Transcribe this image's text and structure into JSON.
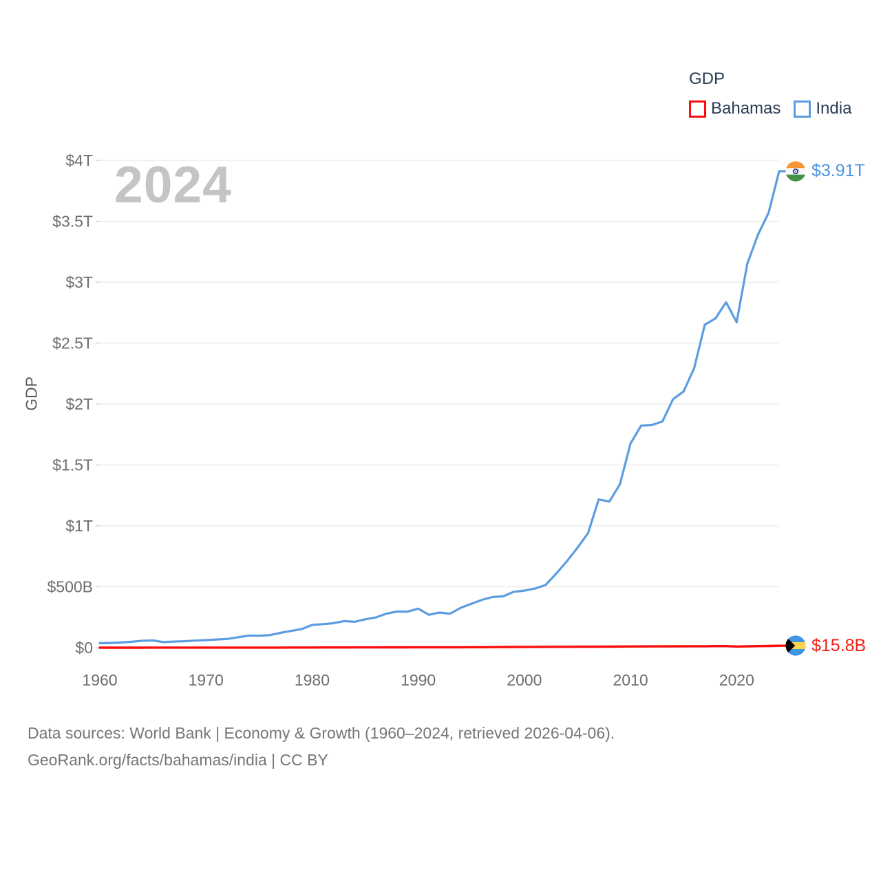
{
  "legend": {
    "title": "GDP",
    "items": [
      {
        "label": "Bahamas",
        "color": "#fb0d0d"
      },
      {
        "label": "India",
        "color": "#5c9ce0"
      }
    ]
  },
  "watermark": "2024",
  "y_axis_title": "GDP",
  "footer": {
    "line1": "Data sources: World Bank | Economy & Growth (1960–2024, retrieved 2026-04-06).",
    "line2": "GeoRank.org/facts/bahamas/india | CC BY"
  },
  "end_labels": {
    "india": {
      "value": "$3.91T",
      "flag": "india-flag-icon",
      "color": "#4d94e0"
    },
    "bahamas": {
      "value": "$15.8B",
      "flag": "bahamas-flag-icon",
      "color": "#f42015"
    }
  },
  "chart_data": {
    "type": "line",
    "title": "GDP",
    "xlabel": "",
    "ylabel": "GDP",
    "xlim": [
      1960,
      2024
    ],
    "ylim_billion_usd": [
      0,
      4000
    ],
    "grid": "horizontal",
    "legend_position": "top-right",
    "x_ticks": [
      1960,
      1970,
      1980,
      1990,
      2000,
      2010,
      2020
    ],
    "y_ticks": [
      {
        "label": "$0",
        "value_b": 0
      },
      {
        "label": "$500B",
        "value_b": 500
      },
      {
        "label": "$1T",
        "value_b": 1000
      },
      {
        "label": "$1.5T",
        "value_b": 1500
      },
      {
        "label": "$2T",
        "value_b": 2000
      },
      {
        "label": "$2.5T",
        "value_b": 2500
      },
      {
        "label": "$3T",
        "value_b": 3000
      },
      {
        "label": "$3.5T",
        "value_b": 3500
      },
      {
        "label": "$4T",
        "value_b": 4000
      }
    ],
    "years": [
      1960,
      1961,
      1962,
      1963,
      1964,
      1965,
      1966,
      1967,
      1968,
      1969,
      1970,
      1971,
      1972,
      1973,
      1974,
      1975,
      1976,
      1977,
      1978,
      1979,
      1980,
      1981,
      1982,
      1983,
      1984,
      1985,
      1986,
      1987,
      1988,
      1989,
      1990,
      1991,
      1992,
      1993,
      1994,
      1995,
      1996,
      1997,
      1998,
      1999,
      2000,
      2001,
      2002,
      2003,
      2004,
      2005,
      2006,
      2007,
      2008,
      2009,
      2010,
      2011,
      2012,
      2013,
      2014,
      2015,
      2016,
      2017,
      2018,
      2019,
      2020,
      2021,
      2022,
      2023,
      2024
    ],
    "series": [
      {
        "name": "Bahamas",
        "color": "#fb0d0d",
        "stroke_width": 3.4,
        "end_label": "$15.8B",
        "values_billion_usd": [
          0.17,
          0.19,
          0.21,
          0.24,
          0.28,
          0.32,
          0.36,
          0.41,
          0.45,
          0.51,
          0.57,
          0.6,
          0.62,
          0.64,
          0.63,
          0.65,
          0.68,
          0.73,
          0.85,
          1.09,
          1.34,
          1.43,
          1.58,
          1.73,
          2.04,
          2.32,
          2.47,
          2.71,
          2.95,
          3.06,
          3.17,
          3.11,
          3.11,
          3.19,
          3.42,
          3.84,
          4.04,
          4.31,
          4.82,
          5.6,
          6.33,
          6.52,
          6.96,
          7.09,
          7.36,
          7.71,
          8.06,
          8.64,
          8.84,
          9.33,
          10.1,
          10.07,
          10.72,
          10.73,
          11.26,
          11.79,
          11.93,
          12.12,
          12.8,
          13.16,
          9.7,
          11.21,
          12.9,
          14.34,
          15.8
        ]
      },
      {
        "name": "India",
        "color": "#5c9ce0",
        "stroke_width": 3.2,
        "end_label": "$3.91T",
        "values_billion_usd": [
          37.0,
          39.2,
          42.2,
          48.4,
          56.5,
          59.6,
          45.9,
          50.1,
          53.1,
          58.4,
          62.4,
          67.4,
          71.5,
          85.5,
          99.5,
          98.5,
          102.7,
          121.5,
          137.3,
          152.0,
          186.3,
          193.5,
          200.7,
          218.3,
          212.2,
          232.5,
          248.2,
          279.0,
          296.6,
          296.0,
          320.5,
          270.1,
          288.2,
          279.3,
          327.3,
          360.3,
          392.9,
          415.9,
          421.4,
          458.8,
          468.4,
          485.4,
          514.9,
          607.7,
          709.1,
          820.4,
          940.3,
          1216.7,
          1198.9,
          1341.9,
          1675.6,
          1823.1,
          1827.6,
          1856.7,
          2039.1,
          2103.6,
          2294.8,
          2651.5,
          2702.9,
          2835.6,
          2671.6,
          3150.3,
          3389.7,
          3567.6,
          3910.0
        ]
      }
    ]
  }
}
